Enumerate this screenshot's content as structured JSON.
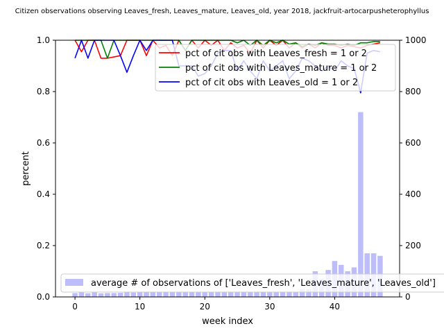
{
  "chart_data": {
    "type": "line",
    "title": "Citizen observations observing Leaves_fresh, Leaves_mature, Leaves_old, year 2018, jackfruit-artocarpusheterophyllus",
    "xlabel": "week index",
    "ylabel": "percent",
    "xlim": [
      -3,
      50
    ],
    "ylim": [
      0,
      1
    ],
    "y2lim": [
      0,
      1000
    ],
    "xticks": [
      0,
      10,
      20,
      30,
      40
    ],
    "yticks": [
      0.0,
      0.2,
      0.4,
      0.6,
      0.8,
      1.0
    ],
    "yticklabels": [
      "0.0",
      "0.2",
      "0.4",
      "0.6",
      "0.8",
      "1.0"
    ],
    "y2ticks": [
      0,
      200,
      400,
      600,
      800,
      1000
    ],
    "grid": false,
    "legend_lines_placement": "upper-right",
    "legend_bars_placement": "lower-left",
    "series": [
      {
        "name": "pct of cit obs with Leaves_fresh = 1 or 2",
        "color": "#ff0000",
        "x": [
          0,
          1,
          2,
          3,
          4,
          5,
          6,
          7,
          8,
          9,
          10,
          11,
          12,
          13,
          14,
          15,
          16,
          17,
          18,
          19,
          20,
          21,
          22,
          23,
          24,
          25,
          26,
          27,
          28,
          29,
          30,
          31,
          32,
          33,
          34,
          35,
          36,
          37,
          38,
          39,
          40,
          41,
          42,
          43,
          44,
          45,
          46,
          47
        ],
        "values": [
          1.0,
          0.955,
          1.0,
          1.0,
          0.93,
          0.93,
          0.935,
          0.94,
          1.0,
          1.0,
          1.0,
          0.94,
          1.0,
          0.97,
          0.98,
          0.94,
          1.0,
          0.96,
          1.0,
          0.97,
          1.0,
          0.98,
          1.0,
          0.96,
          0.99,
          0.97,
          0.98,
          0.95,
          1.0,
          0.97,
          1.0,
          0.98,
          1.0,
          0.97,
          0.99,
          0.97,
          0.985,
          0.97,
          0.99,
          0.98,
          0.98,
          0.97,
          0.98,
          0.975,
          0.97,
          0.98,
          0.985,
          0.99
        ]
      },
      {
        "name": "pct of cit obs with Leaves_mature = 1 or 2",
        "color": "#008000",
        "x": [
          0,
          1,
          2,
          3,
          4,
          5,
          6,
          7,
          8,
          9,
          10,
          11,
          12,
          13,
          14,
          15,
          16,
          17,
          18,
          19,
          20,
          21,
          22,
          23,
          24,
          25,
          26,
          27,
          28,
          29,
          30,
          31,
          32,
          33,
          34,
          35,
          36,
          37,
          38,
          39,
          40,
          41,
          42,
          43,
          44,
          45,
          46,
          47
        ],
        "values": [
          1.0,
          1.0,
          1.0,
          1.0,
          1.0,
          0.93,
          1.0,
          1.0,
          1.0,
          1.0,
          1.0,
          1.0,
          1.0,
          1.0,
          1.0,
          1.0,
          1.0,
          0.96,
          1.0,
          1.0,
          1.0,
          1.0,
          1.0,
          1.0,
          1.0,
          0.99,
          1.0,
          0.98,
          1.0,
          0.98,
          1.0,
          0.99,
          1.0,
          0.985,
          0.99,
          0.975,
          0.985,
          0.98,
          0.99,
          0.985,
          0.985,
          0.98,
          0.985,
          0.98,
          0.99,
          0.99,
          0.995,
          0.995
        ]
      },
      {
        "name": "pct of cit obs with Leaves_old = 1 or 2",
        "color": "#0000ff",
        "x": [
          0,
          1,
          2,
          3,
          4,
          5,
          6,
          7,
          8,
          9,
          10,
          11,
          12,
          13,
          14,
          15,
          16,
          17,
          18,
          19,
          20,
          21,
          22,
          23,
          24,
          25,
          26,
          27,
          28,
          29,
          30,
          31,
          32,
          33,
          34,
          35,
          36,
          37,
          38,
          39,
          40,
          41,
          42,
          43,
          44,
          45,
          46,
          47
        ],
        "values": [
          0.93,
          1.0,
          0.93,
          1.0,
          1.0,
          1.0,
          1.0,
          0.94,
          0.875,
          0.94,
          1.0,
          0.96,
          1.0,
          1.0,
          1.0,
          1.0,
          0.9,
          0.9,
          0.9,
          0.86,
          0.87,
          0.9,
          0.95,
          0.96,
          0.96,
          0.88,
          0.92,
          0.88,
          0.85,
          0.92,
          0.88,
          0.9,
          0.92,
          0.85,
          0.88,
          0.93,
          0.92,
          0.9,
          0.88,
          0.9,
          0.88,
          0.92,
          0.9,
          0.89,
          0.795,
          0.95,
          0.96,
          0.955
        ]
      }
    ],
    "bar_series": {
      "name": "average # of observations of ['Leaves_fresh', 'Leaves_mature', 'Leaves_old']",
      "color": "#bdbdfb",
      "x": [
        0,
        1,
        2,
        3,
        4,
        5,
        6,
        7,
        8,
        9,
        10,
        11,
        12,
        13,
        14,
        15,
        16,
        17,
        18,
        19,
        20,
        21,
        22,
        23,
        24,
        25,
        26,
        27,
        28,
        29,
        30,
        31,
        32,
        33,
        34,
        35,
        36,
        37,
        38,
        39,
        40,
        41,
        42,
        43,
        44,
        45,
        46,
        47
      ],
      "values": [
        15,
        18,
        14,
        18,
        14,
        15,
        15,
        16,
        18,
        17,
        18,
        18,
        18,
        18,
        18,
        18,
        18,
        18,
        18,
        20,
        18,
        20,
        20,
        20,
        20,
        20,
        20,
        20,
        20,
        20,
        20,
        20,
        20,
        20,
        20,
        30,
        30,
        100,
        70,
        105,
        140,
        125,
        100,
        115,
        720,
        170,
        170,
        160
      ]
    }
  }
}
